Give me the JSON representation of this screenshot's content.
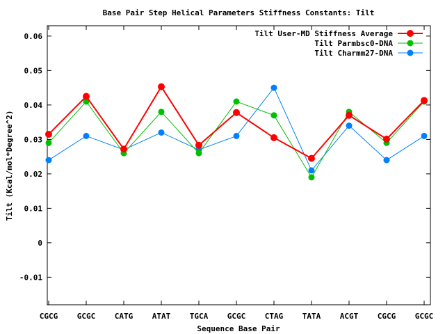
{
  "chart_data": {
    "type": "line",
    "title": "Base Pair Step Helical Parameters Stiffness Constants: Tilt",
    "xlabel": "Sequence Base Pair",
    "ylabel": "Tilt (Kcal/mol*Degree^2)",
    "categories": [
      "CGCG",
      "GCGC",
      "CATG",
      "ATAT",
      "TGCA",
      "GCGC",
      "CTAG",
      "TATA",
      "ACGT",
      "CGCG",
      "GCGC"
    ],
    "ylim": [
      -0.018,
      0.063
    ],
    "yticks": [
      -0.01,
      0,
      0.01,
      0.02,
      0.03,
      0.04,
      0.05,
      0.06
    ],
    "ytick_labels": [
      "-0.01",
      "0",
      "0.01",
      "0.02",
      "0.03",
      "0.04",
      "0.05",
      "0.06"
    ],
    "grid": false,
    "legend_position": "top-right",
    "series": [
      {
        "name": "Tilt User-MD Stiffness Average",
        "color": "#ff0000",
        "values": [
          0.0315,
          0.0425,
          0.0272,
          0.0453,
          0.0283,
          0.0378,
          0.0305,
          0.0245,
          0.037,
          0.0301,
          0.0413
        ]
      },
      {
        "name": "Tilt Parmbsc0-DNA",
        "color": "#00c000",
        "values": [
          0.029,
          0.041,
          0.026,
          0.038,
          0.026,
          0.041,
          0.037,
          0.019,
          0.038,
          0.029,
          0.041
        ]
      },
      {
        "name": "Tilt Charmm27-DNA",
        "color": "#0080ff",
        "values": [
          0.024,
          0.031,
          0.027,
          0.032,
          0.027,
          0.031,
          0.045,
          0.021,
          0.034,
          0.024,
          0.031
        ]
      }
    ]
  }
}
